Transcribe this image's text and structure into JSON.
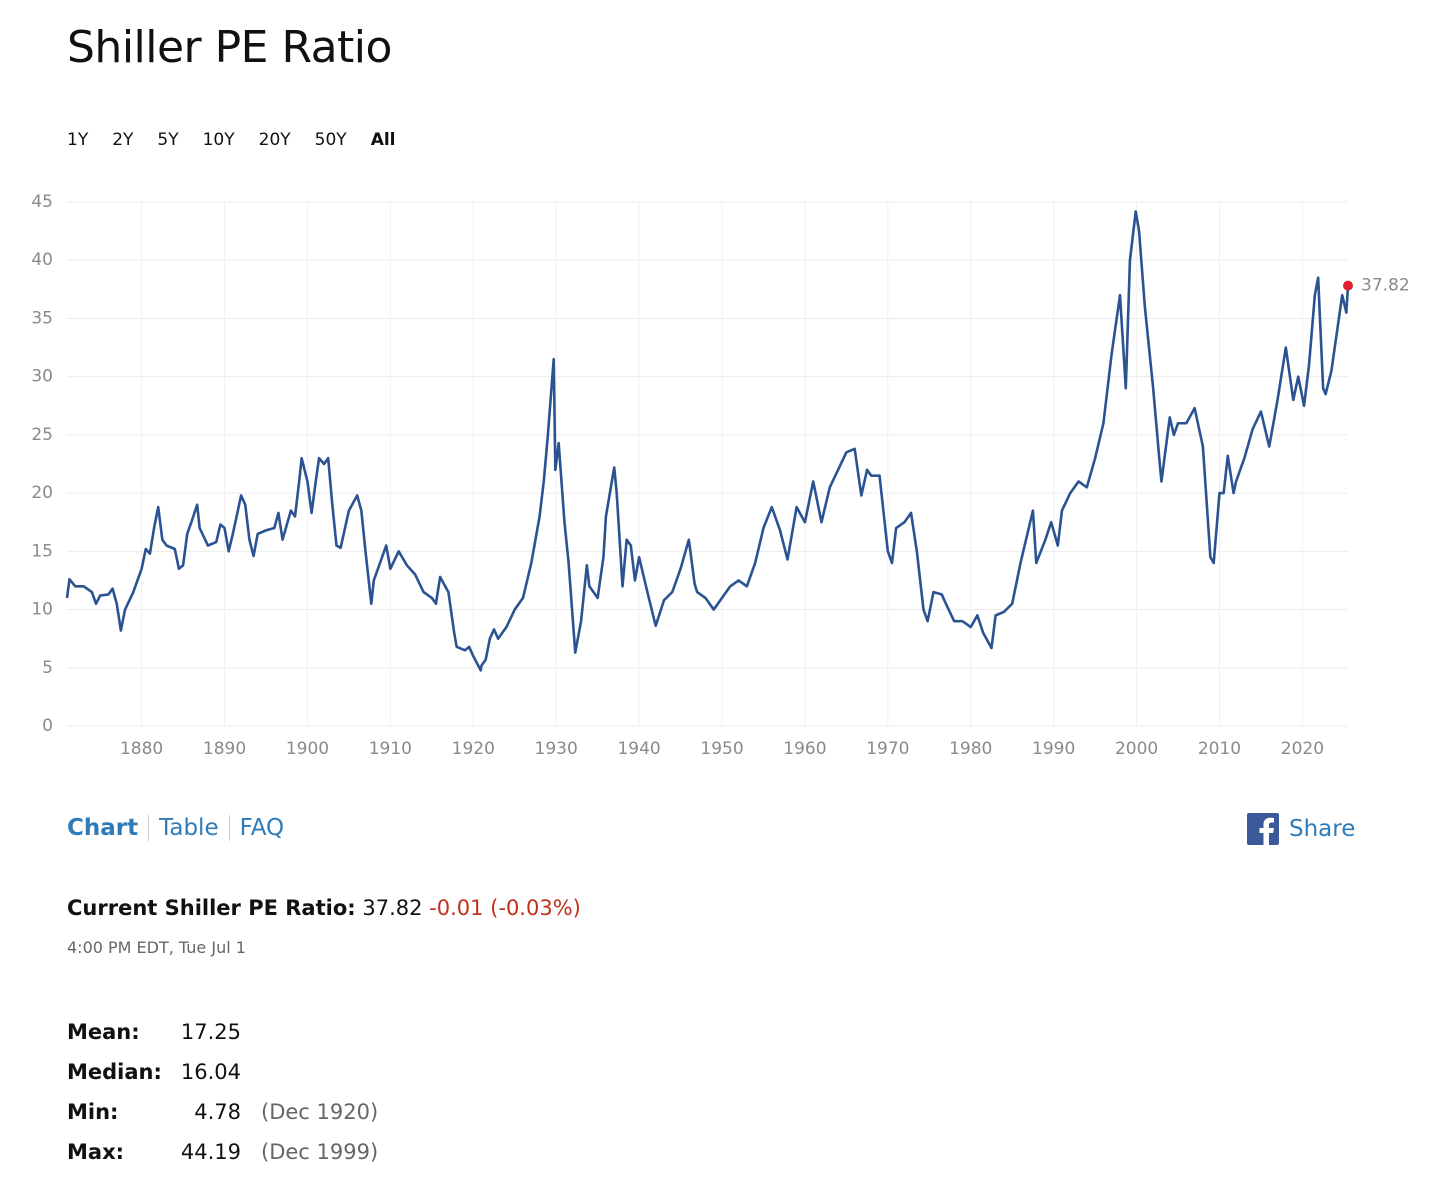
{
  "title": "Shiller PE Ratio",
  "ranges": [
    "1Y",
    "2Y",
    "5Y",
    "10Y",
    "20Y",
    "50Y",
    "All"
  ],
  "selected_range": "All",
  "tabs": [
    "Chart",
    "Table",
    "FAQ"
  ],
  "share": "Share",
  "current": {
    "label": "Current Shiller PE Ratio:",
    "value": "37.82",
    "change": "-0.01 (-0.03%)",
    "time": "4:00 PM EDT, Tue Jul 1"
  },
  "stats": [
    {
      "label": "Mean:",
      "value": "17.25"
    },
    {
      "label": "Median:",
      "value": "16.04"
    },
    {
      "label": "Min:",
      "value": "4.78",
      "date": "(Dec 1920)"
    },
    {
      "label": "Max:",
      "value": "44.19",
      "date": "(Dec 1999)"
    }
  ],
  "chart_data": {
    "type": "line",
    "color": "#2b5391",
    "highlight_color": "#e3202f",
    "grid": true,
    "xlim": [
      1871,
      2025.5
    ],
    "ylim": [
      0,
      45
    ],
    "xticks": [
      1880,
      1890,
      1900,
      1910,
      1920,
      1930,
      1940,
      1950,
      1960,
      1970,
      1980,
      1990,
      2000,
      2010,
      2020
    ],
    "yticks": [
      0,
      5,
      10,
      15,
      20,
      25,
      30,
      35,
      40,
      45
    ],
    "x": [
      1871,
      1871.3,
      1872,
      1873,
      1874,
      1874.5,
      1875,
      1876,
      1876.5,
      1877,
      1877.5,
      1878,
      1879,
      1880,
      1880.5,
      1881,
      1881.5,
      1882,
      1882.5,
      1883,
      1884,
      1884.5,
      1885,
      1885.5,
      1886,
      1886.7,
      1887,
      1888,
      1889,
      1889.5,
      1890,
      1890.5,
      1891,
      1892,
      1892.5,
      1893,
      1893.5,
      1894,
      1895,
      1896,
      1896.5,
      1897,
      1898,
      1898.5,
      1899,
      1899.3,
      1900,
      1900.5,
      1901,
      1901.4,
      1902,
      1902.5,
      1903,
      1903.5,
      1904,
      1905,
      1906,
      1906.5,
      1907,
      1907.7,
      1908,
      1909,
      1909.5,
      1910,
      1911,
      1912,
      1913,
      1914,
      1915,
      1915.5,
      1916,
      1917,
      1917.7,
      1918,
      1919,
      1919.5,
      1920,
      1920.9,
      1921,
      1921.5,
      1922,
      1922.5,
      1923,
      1924,
      1925,
      1926,
      1926.5,
      1927,
      1928,
      1928.5,
      1929,
      1929.7,
      1929.9,
      1930.3,
      1931,
      1931.5,
      1932.3,
      1933,
      1933.7,
      1934,
      1935,
      1935.7,
      1936,
      1937,
      1937.3,
      1938,
      1938.5,
      1939,
      1939.5,
      1940,
      1941,
      1942,
      1943,
      1944,
      1945,
      1946,
      1946.7,
      1947,
      1948,
      1949,
      1950,
      1951,
      1952,
      1953,
      1954,
      1955,
      1956,
      1957,
      1957.9,
      1959,
      1960,
      1961,
      1962,
      1963,
      1964,
      1965,
      1966,
      1966.8,
      1967.5,
      1968,
      1969,
      1970,
      1970.5,
      1971,
      1972,
      1972.8,
      1973.5,
      1974.3,
      1974.8,
      1975.5,
      1976.5,
      1977,
      1978,
      1979,
      1980,
      1980.8,
      1981.5,
      1982.5,
      1983,
      1984,
      1985,
      1986,
      1987.5,
      1987.9,
      1989,
      1989.7,
      1990.5,
      1991,
      1992,
      1993,
      1994,
      1995,
      1996,
      1997,
      1998,
      1998.7,
      1999.2,
      1999.9,
      2000.3,
      2001,
      2002,
      2002.8,
      2003,
      2004,
      2004.5,
      2005,
      2006,
      2007,
      2008,
      2008.9,
      2009.3,
      2010,
      2010.5,
      2011,
      2011.7,
      2012,
      2013,
      2014,
      2015,
      2016,
      2017,
      2018,
      2018.9,
      2019.5,
      2020.2,
      2020.8,
      2021.5,
      2021.9,
      2022.5,
      2022.8,
      2023.5,
      2024,
      2024.8,
      2025.3,
      2025.5
    ],
    "values": [
      11.0,
      12.6,
      12,
      12,
      11.5,
      10.5,
      11.2,
      11.3,
      11.8,
      10.5,
      8.2,
      10,
      11.5,
      13.5,
      15.2,
      14.8,
      17,
      18.8,
      16,
      15.5,
      15.2,
      13.5,
      13.8,
      16.5,
      17.5,
      19,
      17,
      15.5,
      15.8,
      17.3,
      17,
      15,
      16.5,
      19.8,
      19,
      16,
      14.6,
      16.5,
      16.8,
      17,
      18.3,
      16,
      18.5,
      18,
      21,
      23,
      21,
      18.3,
      21,
      23,
      22.5,
      23,
      19,
      15.5,
      15.3,
      18.5,
      19.8,
      18.5,
      15,
      10.5,
      12.5,
      14.5,
      15.5,
      13.5,
      15,
      13.8,
      13,
      11.5,
      11,
      10.5,
      12.8,
      11.5,
      8,
      6.8,
      6.5,
      6.8,
      6,
      4.78,
      5.2,
      5.7,
      7.5,
      8.3,
      7.5,
      8.5,
      10,
      11,
      12.5,
      14,
      18,
      21,
      25,
      31.5,
      22,
      24.3,
      17.5,
      14,
      6.3,
      9,
      13.8,
      12,
      11,
      14.5,
      18,
      22.2,
      20,
      12,
      16,
      15.5,
      12.5,
      14.5,
      11.5,
      8.6,
      10.8,
      11.5,
      13.5,
      16,
      12.2,
      11.5,
      11,
      10,
      11,
      12,
      12.5,
      12,
      14,
      17,
      18.8,
      16.8,
      14.3,
      18.8,
      17.5,
      21,
      17.5,
      20.5,
      22,
      23.5,
      23.8,
      19.8,
      22,
      21.5,
      21.5,
      15,
      14,
      17,
      17.5,
      18.3,
      15,
      10,
      9,
      11.5,
      11.3,
      10.5,
      9,
      9,
      8.5,
      9.5,
      8,
      6.7,
      9.5,
      9.8,
      10.5,
      14,
      18.5,
      14,
      16,
      17.5,
      15.5,
      18.5,
      20,
      21,
      20.5,
      23,
      26,
      32,
      37,
      29,
      40,
      44.19,
      42.5,
      36,
      29,
      22.5,
      21,
      26.5,
      25,
      26,
      26,
      27.3,
      24,
      14.5,
      14,
      20,
      20,
      23.2,
      20,
      21,
      23,
      25.5,
      27,
      24,
      28,
      32.5,
      28,
      30,
      27.5,
      31,
      37,
      38.5,
      29,
      28.5,
      30.5,
      33,
      37,
      35.5,
      37.82
    ]
  }
}
